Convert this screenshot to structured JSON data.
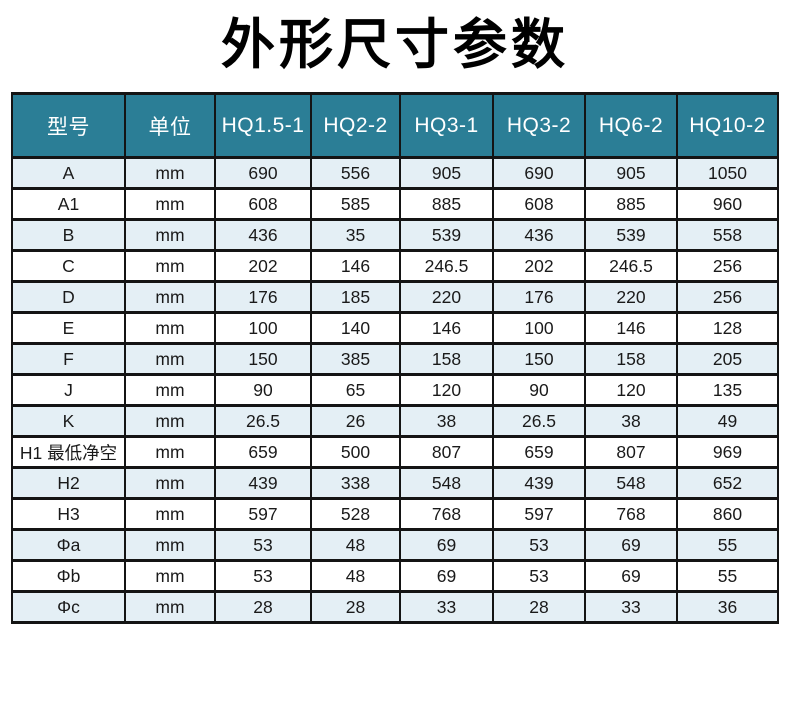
{
  "title": "外形尺寸参数",
  "colors": {
    "header_bg": "#2b7e96",
    "header_text": "#ffffff",
    "row_alt_bg": "#e4eff5",
    "row_bg": "#ffffff",
    "border": "#141414",
    "title_color": "#000000"
  },
  "table": {
    "headers": [
      "型号",
      "单位",
      "HQ1.5-1",
      "HQ2-2",
      "HQ3-1",
      "HQ3-2",
      "HQ6-2",
      "HQ10-2"
    ],
    "rows": [
      [
        "A",
        "mm",
        "690",
        "556",
        "905",
        "690",
        "905",
        "1050"
      ],
      [
        "A1",
        "mm",
        "608",
        "585",
        "885",
        "608",
        "885",
        "960"
      ],
      [
        "B",
        "mm",
        "436",
        "35",
        "539",
        "436",
        "539",
        "558"
      ],
      [
        "C",
        "mm",
        "202",
        "146",
        "246.5",
        "202",
        "246.5",
        "256"
      ],
      [
        "D",
        "mm",
        "176",
        "185",
        "220",
        "176",
        "220",
        "256"
      ],
      [
        "E",
        "mm",
        "100",
        "140",
        "146",
        "100",
        "146",
        "128"
      ],
      [
        "F",
        "mm",
        "150",
        "385",
        "158",
        "150",
        "158",
        "205"
      ],
      [
        "J",
        "mm",
        "90",
        "65",
        "120",
        "90",
        "120",
        "135"
      ],
      [
        "K",
        "mm",
        "26.5",
        "26",
        "38",
        "26.5",
        "38",
        "49"
      ],
      [
        "H1 最低净空",
        "mm",
        "659",
        "500",
        "807",
        "659",
        "807",
        "969"
      ],
      [
        "H2",
        "mm",
        "439",
        "338",
        "548",
        "439",
        "548",
        "652"
      ],
      [
        "H3",
        "mm",
        "597",
        "528",
        "768",
        "597",
        "768",
        "860"
      ],
      [
        "Φa",
        "mm",
        "53",
        "48",
        "69",
        "53",
        "69",
        "55"
      ],
      [
        "Φb",
        "mm",
        "53",
        "48",
        "69",
        "53",
        "69",
        "55"
      ],
      [
        "Φc",
        "mm",
        "28",
        "28",
        "33",
        "28",
        "33",
        "36"
      ]
    ]
  }
}
